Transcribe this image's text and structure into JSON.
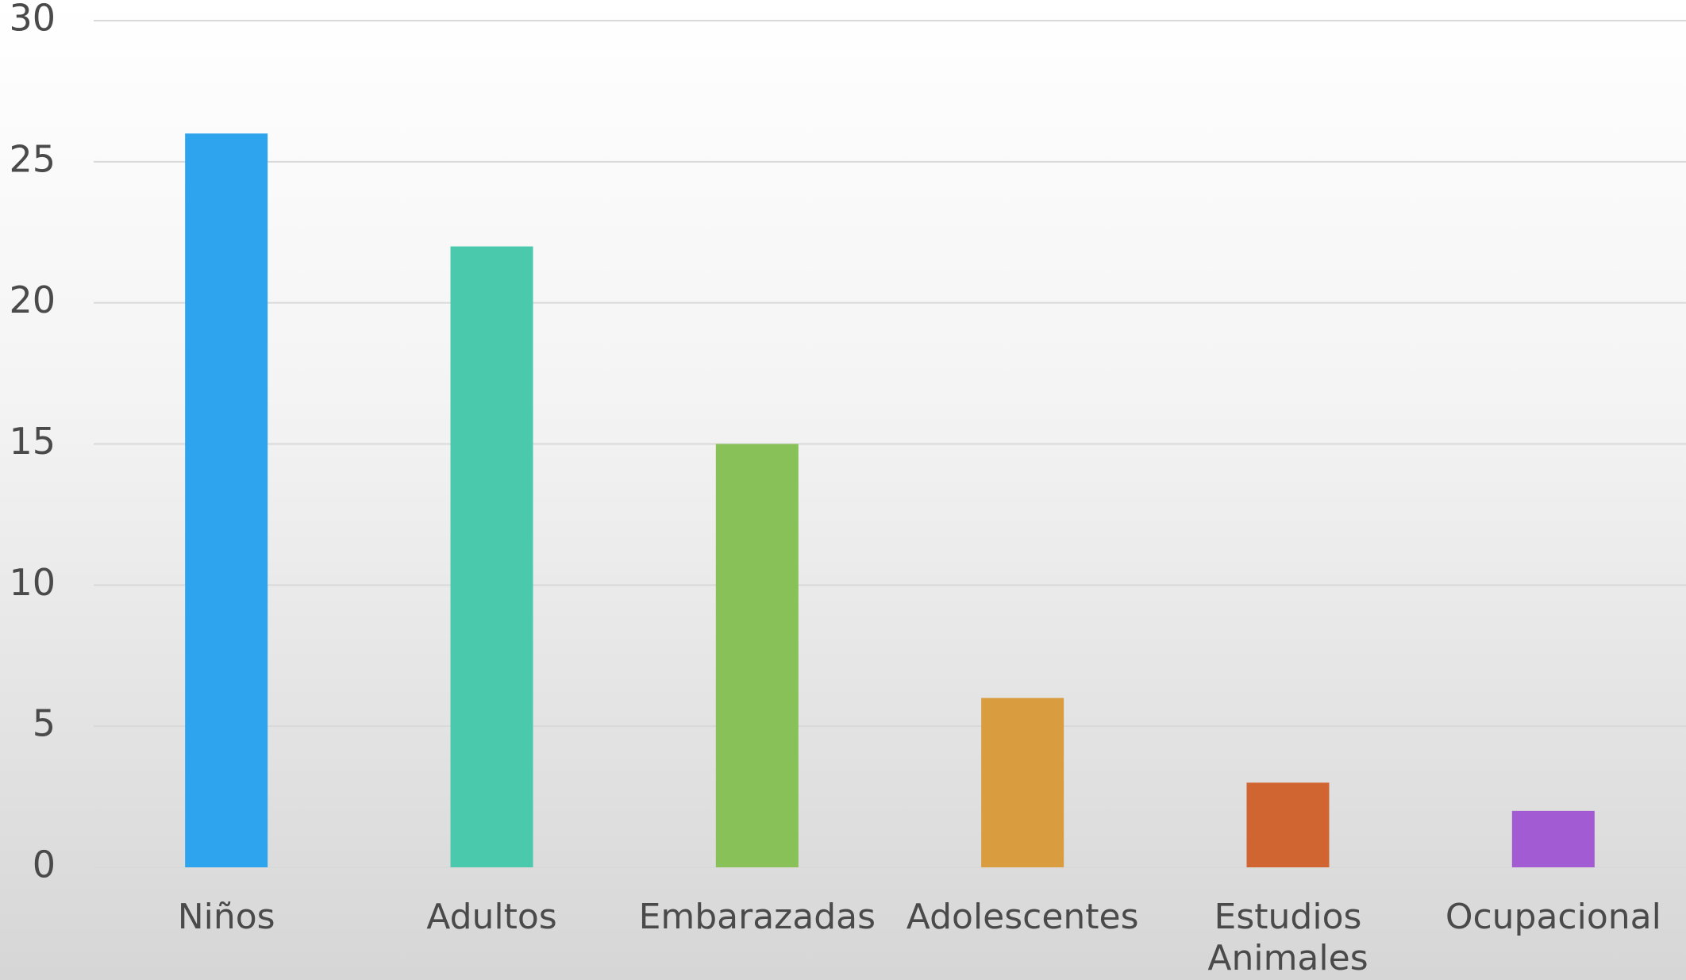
{
  "chart_data": {
    "type": "bar",
    "categories": [
      "Niños",
      "Adultos",
      "Embarazadas",
      "Adolescentes",
      "Estudios Animales",
      "Ocupacional"
    ],
    "values": [
      26,
      22,
      15,
      6,
      3,
      2
    ],
    "colors": [
      "#2ea3ee",
      "#4ac9ad",
      "#87c158",
      "#d99c3e",
      "#d16531",
      "#a25bd3"
    ],
    "ylim": [
      0,
      30
    ],
    "yticks": [
      0,
      5,
      10,
      15,
      20,
      25,
      30
    ],
    "grid": true
  }
}
